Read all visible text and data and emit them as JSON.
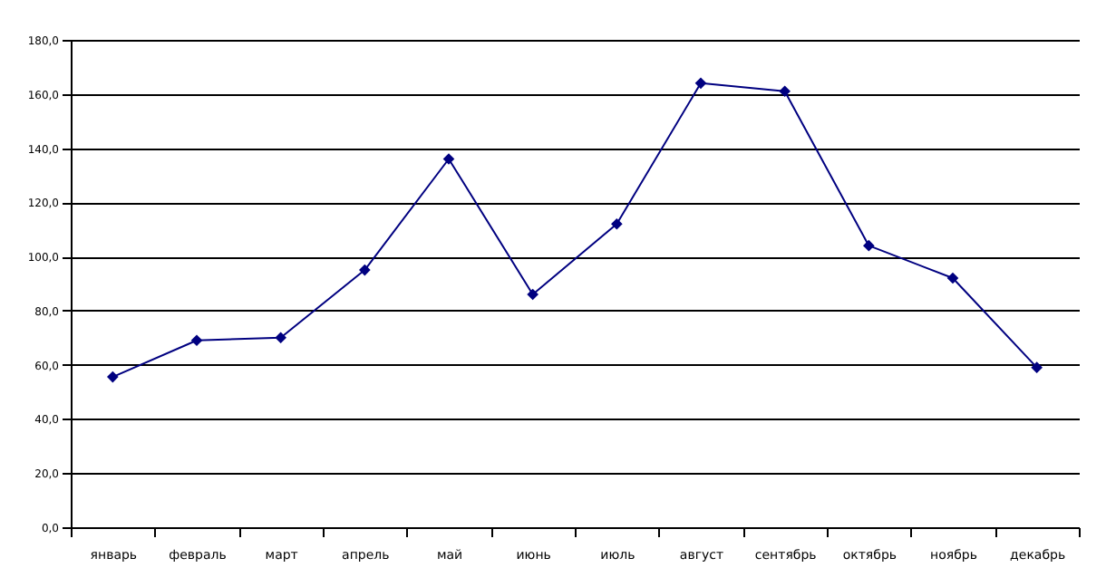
{
  "chart_data": {
    "type": "line",
    "categories": [
      "январь",
      "февраль",
      "март",
      "апрель",
      "май",
      "июнь",
      "июль",
      "август",
      "сентябрь",
      "октябрь",
      "ноябрь",
      "декабрь"
    ],
    "series": [
      {
        "color": "#000080",
        "values": [
          55.5,
          69,
          70,
          95,
          136,
          86,
          112,
          164,
          161,
          104,
          92,
          59
        ]
      }
    ],
    "ylim": [
      0,
      180
    ],
    "yticks": [
      {
        "value": 0,
        "label": "0,0"
      },
      {
        "value": 20,
        "label": "20,0"
      },
      {
        "value": 40,
        "label": "40,0"
      },
      {
        "value": 60,
        "label": "60,0"
      },
      {
        "value": 80,
        "label": "80,0"
      },
      {
        "value": 100,
        "label": "100,0"
      },
      {
        "value": 120,
        "label": "120,0"
      },
      {
        "value": 140,
        "label": "140,0"
      },
      {
        "value": 160,
        "label": "160,0"
      },
      {
        "value": 180,
        "label": "180,0"
      }
    ],
    "grid": "y",
    "marker": "diamond",
    "line_style": "solid"
  }
}
